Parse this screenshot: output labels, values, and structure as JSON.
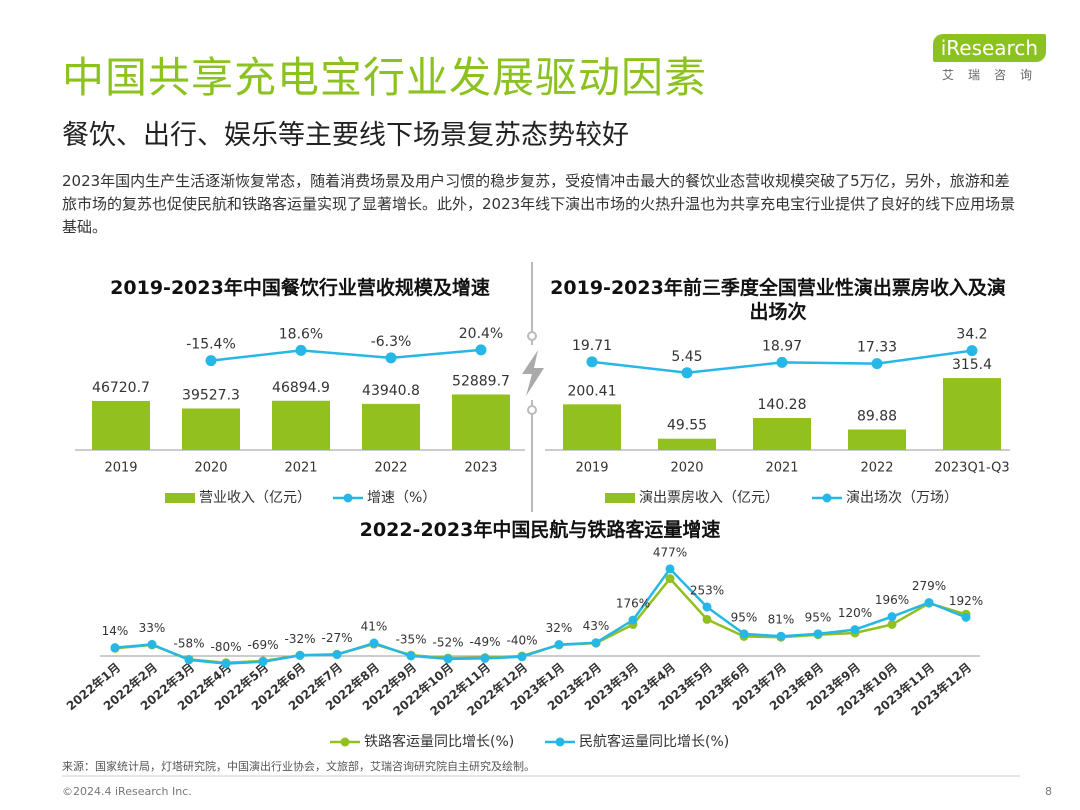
{
  "header": {
    "title": "中国共享充电宝行业发展驱动因素",
    "subtitle": "餐饮、出行、娱乐等主要线下场景复苏态势较好",
    "paragraph": "2023年国内生产生活逐渐恢复常态，随着消费场景及用户习惯的稳步复苏，受疫情冲击最大的餐饮业态营收规模突破了5万亿，另外，旅游和差旅市场的复苏也促使民航和铁路客运量实现了显著增长。此外，2023年线下演出市场的火热升温也为共享充电宝行业提供了良好的线下应用场景基础。",
    "logo": "iResearch",
    "logo_cn": "艾瑞咨询"
  },
  "chart_data": [
    {
      "type": "bar",
      "title": "2019-2023年中国餐饮行业营收规模及增速",
      "categories": [
        "2019",
        "2020",
        "2021",
        "2022",
        "2023"
      ],
      "series": [
        {
          "name": "营业收入（亿元）",
          "color": "#92c01f",
          "type": "bar",
          "values": [
            46720.7,
            39527.3,
            46894.9,
            43940.8,
            52889.7
          ]
        },
        {
          "name": "增速（%）",
          "color": "#27b7e6",
          "type": "line",
          "axis": "y2",
          "values": [
            null,
            -15.4,
            18.6,
            -6.3,
            20.4
          ],
          "value_labels": [
            null,
            "-15.4%",
            "18.6%",
            "-6.3%",
            "20.4%"
          ]
        }
      ]
    },
    {
      "type": "bar",
      "title": "2019-2023年前三季度全国营业性演出票房收入及演出场次",
      "categories": [
        "2019",
        "2020",
        "2021",
        "2022",
        "2023Q1-Q3"
      ],
      "series": [
        {
          "name": "演出票房收入（亿元）",
          "color": "#92c01f",
          "type": "bar",
          "values": [
            200.41,
            49.55,
            140.28,
            89.88,
            315.4
          ]
        },
        {
          "name": "演出场次（万场）",
          "color": "#27b7e6",
          "type": "line",
          "axis": "y2",
          "values": [
            19.71,
            5.45,
            18.97,
            17.33,
            34.2
          ]
        }
      ]
    },
    {
      "type": "line",
      "title": "2022-2023年中国民航与铁路客运量增速",
      "categories": [
        "2022年1月",
        "2022年2月",
        "2022年3月",
        "2022年4月",
        "2022年5月",
        "2022年6月",
        "2022年7月",
        "2022年8月",
        "2022年9月",
        "2022年10月",
        "2022年11月",
        "2022年12月",
        "2023年1月",
        "2023年2月",
        "2023年3月",
        "2023年4月",
        "2023年5月",
        "2023年6月",
        "2023年7月",
        "2023年8月",
        "2023年9月",
        "2023年10月",
        "2023年11月",
        "2023年12月"
      ],
      "series": [
        {
          "name": "铁路客运量同比增长(%)",
          "color": "#92c01f",
          "values": [
            10,
            30,
            -55,
            -75,
            -65,
            -30,
            -25,
            35,
            -30,
            -48,
            -45,
            -35,
            30,
            40,
            150,
            420,
            180,
            80,
            75,
            90,
            100,
            150,
            275,
            210
          ]
        },
        {
          "name": "民航客运量同比增长(%)",
          "color": "#27b7e6",
          "values": [
            14,
            33,
            -58,
            -80,
            -69,
            -32,
            -27,
            41,
            -35,
            -52,
            -49,
            -40,
            32,
            43,
            176,
            477,
            253,
            95,
            81,
            95,
            120,
            196,
            279,
            192
          ],
          "value_labels": [
            "14%",
            "33%",
            "-58%",
            "-80%",
            "-69%",
            "-32%",
            "-27%",
            "41%",
            "-35%",
            "-52%",
            "-49%",
            "-40%",
            "32%",
            "43%",
            "176%",
            "477%",
            "253%",
            "95%",
            "81%",
            "95%",
            "120%",
            "196%",
            "279%",
            "192%"
          ]
        }
      ]
    }
  ],
  "footer": {
    "source": "来源：国家统计局，灯塔研究院，中国演出行业协会，文旅部，艾瑞咨询研究院自主研究及绘制。",
    "copyright": "©2024.4 iResearch Inc.",
    "page": "8"
  }
}
